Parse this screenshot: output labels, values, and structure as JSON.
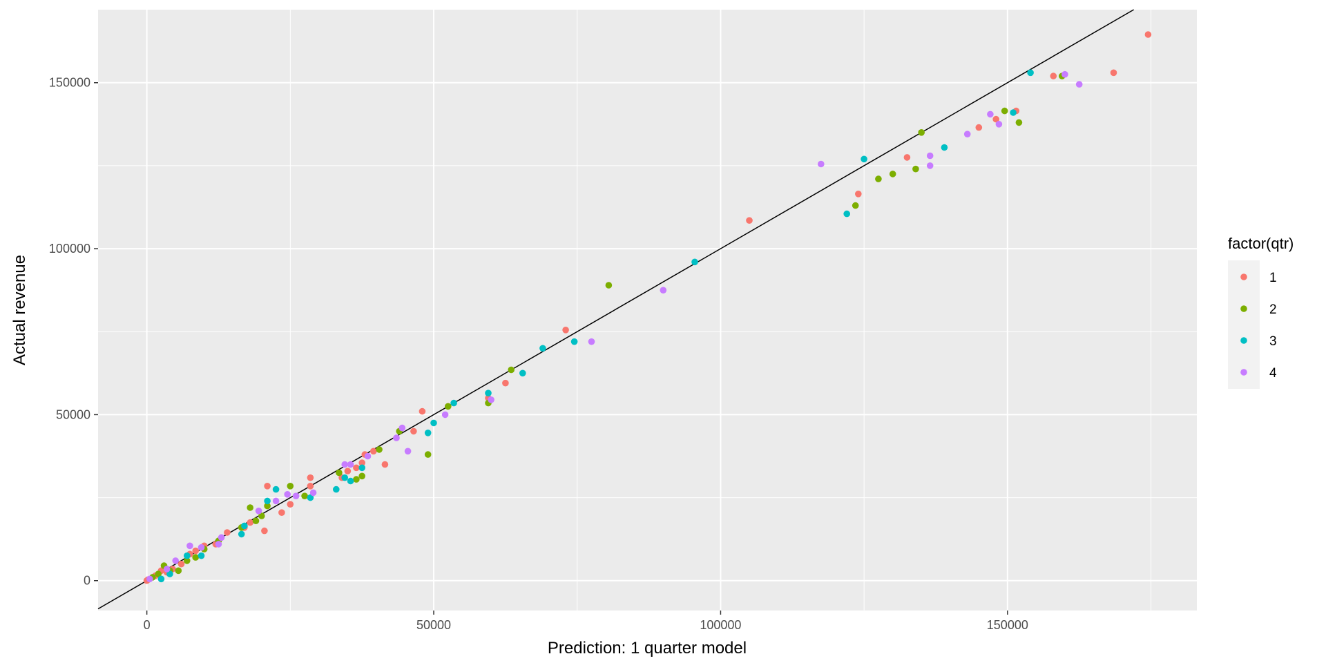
{
  "chart_data": {
    "type": "scatter",
    "title": "",
    "xlabel": "Prediction: 1 quarter model",
    "ylabel": "Actual revenue",
    "xlim": [
      -8500,
      183000
    ],
    "ylim": [
      -9000,
      172000
    ],
    "x_ticks": [
      0,
      50000,
      100000,
      150000
    ],
    "x_tick_labels": [
      "0",
      "50000",
      "100000",
      "150000"
    ],
    "y_ticks": [
      0,
      50000,
      100000,
      150000
    ],
    "y_tick_labels": [
      "0",
      "50000",
      "100000",
      "150000"
    ],
    "grid": true,
    "reference_line": {
      "type": "abline",
      "intercept": 0,
      "slope": 1,
      "color": "#000000"
    },
    "legend": {
      "title": "factor(qtr)",
      "position": "right",
      "entries": [
        {
          "label": "1",
          "color": "#F8766D"
        },
        {
          "label": "2",
          "color": "#7CAE00"
        },
        {
          "label": "3",
          "color": "#00BFC4"
        },
        {
          "label": "4",
          "color": "#C77CFF"
        }
      ]
    },
    "series": [
      {
        "name": "1",
        "color": "#F8766D",
        "points": [
          [
            0,
            0
          ],
          [
            200,
            300
          ],
          [
            1500,
            1500
          ],
          [
            2500,
            3000
          ],
          [
            3500,
            2500
          ],
          [
            4500,
            3500
          ],
          [
            6000,
            5000
          ],
          [
            7500,
            8000
          ],
          [
            8500,
            9000
          ],
          [
            10000,
            10500
          ],
          [
            12000,
            11000
          ],
          [
            14000,
            14500
          ],
          [
            17000,
            16000
          ],
          [
            18000,
            17500
          ],
          [
            20500,
            15000
          ],
          [
            21000,
            28500
          ],
          [
            23500,
            20500
          ],
          [
            25000,
            23000
          ],
          [
            28500,
            28500
          ],
          [
            28500,
            31000
          ],
          [
            34000,
            31000
          ],
          [
            35000,
            33000
          ],
          [
            36500,
            34000
          ],
          [
            37500,
            35500
          ],
          [
            38000,
            38000
          ],
          [
            39500,
            39000
          ],
          [
            41500,
            35000
          ],
          [
            46500,
            45000
          ],
          [
            48000,
            51000
          ],
          [
            52500,
            52500
          ],
          [
            59500,
            55000
          ],
          [
            62500,
            59500
          ],
          [
            73000,
            75500
          ],
          [
            105000,
            108500
          ],
          [
            124000,
            116500
          ],
          [
            132500,
            127500
          ],
          [
            145000,
            136500
          ],
          [
            148000,
            139000
          ],
          [
            151500,
            141500
          ],
          [
            158000,
            152000
          ],
          [
            168500,
            153000
          ],
          [
            174500,
            164500
          ]
        ]
      },
      {
        "name": "2",
        "color": "#7CAE00",
        "points": [
          [
            1000,
            1000
          ],
          [
            2000,
            2000
          ],
          [
            3000,
            4500
          ],
          [
            4000,
            3000
          ],
          [
            5500,
            3000
          ],
          [
            7000,
            6000
          ],
          [
            8500,
            7000
          ],
          [
            10000,
            9500
          ],
          [
            12500,
            12000
          ],
          [
            16500,
            16000
          ],
          [
            18000,
            22000
          ],
          [
            19000,
            18000
          ],
          [
            20000,
            19500
          ],
          [
            21000,
            22500
          ],
          [
            25000,
            28500
          ],
          [
            27500,
            25500
          ],
          [
            33500,
            32500
          ],
          [
            36500,
            30500
          ],
          [
            37500,
            31500
          ],
          [
            40500,
            39500
          ],
          [
            44000,
            45000
          ],
          [
            49000,
            38000
          ],
          [
            52500,
            52500
          ],
          [
            59500,
            53500
          ],
          [
            63500,
            63500
          ],
          [
            80500,
            89000
          ],
          [
            123500,
            113000
          ],
          [
            127500,
            121000
          ],
          [
            130000,
            122500
          ],
          [
            134000,
            124000
          ],
          [
            135000,
            135000
          ],
          [
            149500,
            141500
          ],
          [
            152000,
            138000
          ],
          [
            159500,
            152000
          ]
        ]
      },
      {
        "name": "3",
        "color": "#00BFC4",
        "points": [
          [
            2500,
            500
          ],
          [
            4000,
            2000
          ],
          [
            7000,
            7500
          ],
          [
            9500,
            7500
          ],
          [
            16500,
            14000
          ],
          [
            17000,
            16500
          ],
          [
            21000,
            24000
          ],
          [
            22500,
            27500
          ],
          [
            28500,
            25000
          ],
          [
            33000,
            27500
          ],
          [
            34500,
            31000
          ],
          [
            35500,
            30000
          ],
          [
            37500,
            34000
          ],
          [
            49000,
            44500
          ],
          [
            50000,
            47500
          ],
          [
            53500,
            53500
          ],
          [
            59500,
            56500
          ],
          [
            65500,
            62500
          ],
          [
            69000,
            70000
          ],
          [
            74500,
            72000
          ],
          [
            95500,
            96000
          ],
          [
            122000,
            110500
          ],
          [
            125000,
            127000
          ],
          [
            139000,
            130500
          ],
          [
            151000,
            141000
          ],
          [
            154000,
            153000
          ]
        ]
      },
      {
        "name": "4",
        "color": "#C77CFF",
        "points": [
          [
            500,
            500
          ],
          [
            3500,
            3500
          ],
          [
            5000,
            6000
          ],
          [
            7500,
            10500
          ],
          [
            9500,
            10000
          ],
          [
            12500,
            11000
          ],
          [
            13000,
            13000
          ],
          [
            19500,
            21000
          ],
          [
            22500,
            24000
          ],
          [
            24500,
            26000
          ],
          [
            26000,
            25500
          ],
          [
            29000,
            26500
          ],
          [
            34500,
            35000
          ],
          [
            35500,
            35000
          ],
          [
            38500,
            37500
          ],
          [
            43500,
            43000
          ],
          [
            44500,
            46000
          ],
          [
            45500,
            39000
          ],
          [
            52000,
            50000
          ],
          [
            60000,
            54500
          ],
          [
            77500,
            72000
          ],
          [
            90000,
            87500
          ],
          [
            117500,
            125500
          ],
          [
            136500,
            128000
          ],
          [
            136500,
            125000
          ],
          [
            143000,
            134500
          ],
          [
            147000,
            140500
          ],
          [
            148500,
            137500
          ],
          [
            160000,
            152500
          ],
          [
            162500,
            149500
          ]
        ]
      }
    ]
  }
}
